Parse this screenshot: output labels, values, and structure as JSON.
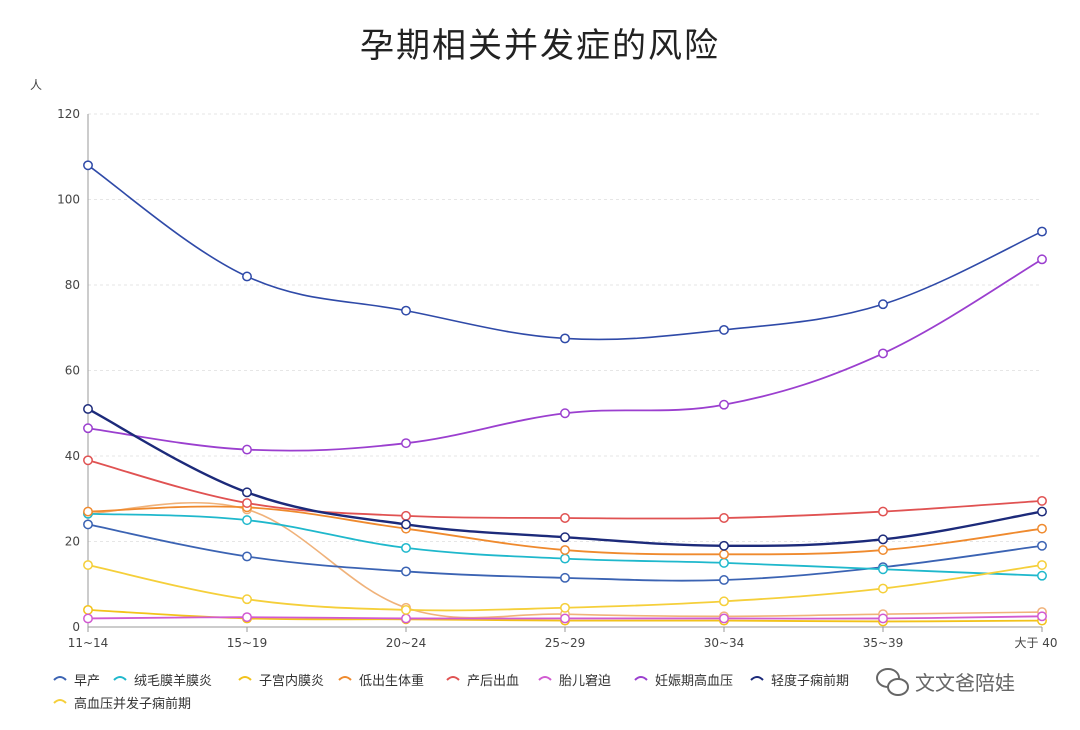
{
  "chart_data": {
    "type": "line",
    "title": "孕期相关并发症的风险",
    "ylabel": "人",
    "xlabel": "",
    "ylim": [
      0,
      120
    ],
    "yticks": [
      0,
      20,
      40,
      60,
      80,
      100,
      120
    ],
    "categories": [
      "11~14",
      "15~19",
      "20~24",
      "25~29",
      "30~34",
      "35~39",
      "大于 40"
    ],
    "grid": "horizontal dashed",
    "legend_position": "bottom",
    "series": [
      {
        "name": "早产",
        "color": "#3b63b3",
        "values": [
          24,
          16.5,
          13,
          11.5,
          11,
          14,
          19
        ]
      },
      {
        "name": "绒毛膜羊膜炎",
        "color": "#1fb8cc",
        "values": [
          26.5,
          25,
          18.5,
          16,
          15,
          13.5,
          12
        ]
      },
      {
        "name": "子宫内膜炎",
        "color": "#f2c21b",
        "values": [
          4,
          2,
          1.8,
          1.5,
          1.5,
          1.3,
          1.5
        ]
      },
      {
        "name": "低出生体重",
        "color": "#ef8a2e",
        "values": [
          27,
          28,
          23,
          18,
          17,
          18,
          23
        ]
      },
      {
        "name": "产后出血",
        "color": "#e05252",
        "values": [
          39,
          29,
          26,
          25.5,
          25.5,
          27,
          29.5
        ]
      },
      {
        "name": "胎儿窘迫",
        "color": "#d15ad1",
        "values": [
          2,
          2.3,
          2,
          2,
          2,
          2,
          2.5
        ]
      },
      {
        "name": "妊娠期高血压",
        "color": "#9b3fcf",
        "values": [
          46.5,
          41.5,
          43,
          50,
          52,
          64,
          86
        ]
      },
      {
        "name": "轻度子痫前期",
        "color": "#1c2a7a",
        "values": [
          51,
          31.5,
          24,
          21,
          19,
          20.5,
          27
        ]
      },
      {
        "name": "高血压并发子痫前期",
        "color": "#f5cf3a",
        "values": [
          14.5,
          6.5,
          4,
          4.5,
          6,
          9,
          14.5
        ]
      }
    ]
  },
  "watermark": "文文爸陪娃",
  "extra_lines": [
    {
      "color": "#f0b27a",
      "values": [
        26.5,
        27.5,
        4.5,
        3,
        2.5,
        3,
        3.5
      ]
    },
    {
      "color": "#2f4aa8",
      "values": [
        108,
        82,
        74,
        67.5,
        69.5,
        75.5,
        92.5
      ]
    }
  ]
}
